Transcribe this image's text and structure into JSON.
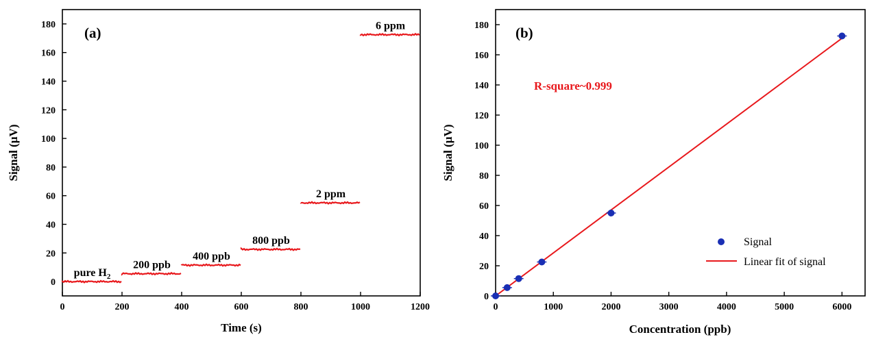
{
  "colors": {
    "series": "#e8181c",
    "points": "#1a2fb4",
    "axis": "#000000"
  },
  "chart_data": [
    {
      "type": "line",
      "panel_label": "(a)",
      "xlabel": "Time (s)",
      "ylabel": "Signal (µV)",
      "xlim": [
        0,
        1200
      ],
      "ylim": [
        -10,
        190
      ],
      "xticks": [
        0,
        200,
        400,
        600,
        800,
        1000,
        1200
      ],
      "yticks": [
        0,
        20,
        40,
        60,
        80,
        100,
        120,
        140,
        160,
        180
      ],
      "steps": [
        {
          "label": "pure H",
          "label_sub": "2",
          "x0": 0,
          "x1": 200,
          "y": 0
        },
        {
          "label": "200 ppb",
          "x0": 200,
          "x1": 400,
          "y": 5.5
        },
        {
          "label": "400 ppb",
          "x0": 400,
          "x1": 600,
          "y": 11.5
        },
        {
          "label": "800 ppb",
          "x0": 600,
          "x1": 800,
          "y": 22.5
        },
        {
          "label": "2 ppm",
          "x0": 800,
          "x1": 1000,
          "y": 55
        },
        {
          "label": "6 ppm",
          "x0": 1000,
          "x1": 1200,
          "y": 172.5
        }
      ]
    },
    {
      "type": "scatter",
      "panel_label": "(b)",
      "xlabel": "Concentration (ppb)",
      "ylabel": "Signal (µV)",
      "xlim": [
        0,
        6400
      ],
      "ylim": [
        0,
        190
      ],
      "xticks": [
        0,
        1000,
        2000,
        3000,
        4000,
        5000,
        6000
      ],
      "yticks": [
        0,
        20,
        40,
        60,
        80,
        100,
        120,
        140,
        160,
        180
      ],
      "annotation": "R-square~0.999",
      "series": [
        {
          "name": "Signal",
          "x": [
            0,
            200,
            400,
            800,
            2000,
            6000
          ],
          "y": [
            0,
            5.5,
            11.5,
            22.5,
            55,
            172.5
          ]
        },
        {
          "name": "Linear fit of signal",
          "type": "line",
          "x": [
            0,
            6000
          ],
          "y": [
            0,
            171
          ]
        }
      ],
      "legend_position": "bottom-right"
    }
  ]
}
